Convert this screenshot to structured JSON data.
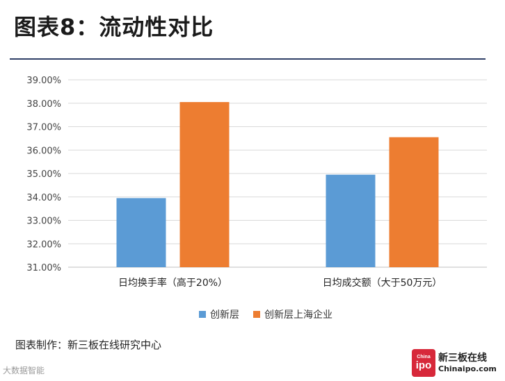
{
  "header": {
    "title": "图表8：流动性对比"
  },
  "chart_data": {
    "type": "bar",
    "categories": [
      "日均换手率（高于20%）",
      "日均成交额（大于50万元）"
    ],
    "series": [
      {
        "name": "创新层",
        "color": "#5b9bd5",
        "values": [
          33.95,
          34.95
        ]
      },
      {
        "name": "创新层上海企业",
        "color": "#ed7d31",
        "values": [
          38.05,
          36.55
        ]
      }
    ],
    "ylim": [
      31.0,
      39.0
    ],
    "yticks": [
      "31.00%",
      "32.00%",
      "33.00%",
      "34.00%",
      "35.00%",
      "36.00%",
      "37.00%",
      "38.00%",
      "39.00%"
    ],
    "grid": true,
    "legend_position": "bottom",
    "title": "",
    "xlabel": "",
    "ylabel": ""
  },
  "footer": {
    "source": "图表制作：新三板在线研究中心",
    "watermark": "大数据智能",
    "logo_small": "China",
    "logo_big": "ipo",
    "logo_cn": "新三板在线",
    "logo_en": "Chinaipo.com"
  }
}
